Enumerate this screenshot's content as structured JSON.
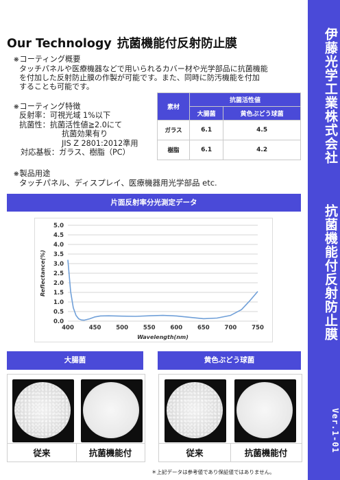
{
  "sidebar": {
    "company": "伊藤光学工業株式会社",
    "product": "抗菌機能付反射防止膜",
    "version": "Ver.1-01"
  },
  "header": {
    "title_en": "Our Technology",
    "title_jp": "抗菌機能付反射防止膜"
  },
  "overview": {
    "heading": "コーティング概要",
    "lines": [
      "タッチパネルや医療機器などで用いられるカバー材や光学部品に抗菌機能",
      "を付加した反射防止膜の作製が可能です。また、同時に防汚機能を付加",
      "することも可能です。"
    ]
  },
  "features": {
    "heading": "コーティング特徴",
    "lines": [
      "反射率：可視光域 1%以下",
      "抗菌性：抗菌活性値≧2.0にて",
      "抗菌効果有り",
      "JIS Z 2801:2012準用",
      "対応基板：ガラス、樹脂（PC）"
    ]
  },
  "applications": {
    "heading": "製品用途",
    "line": "タッチパネル、ディスプレイ、医療機器用光学部品 etc."
  },
  "activity_table": {
    "col_material": "素材",
    "col_group": "抗菌活性値",
    "col_ecoli": "大腸菌",
    "col_staph": "黄色ぶどう球菌",
    "rows": [
      {
        "material": "ガラス",
        "ecoli": "6.1",
        "staph": "4.5"
      },
      {
        "material": "樹脂",
        "ecoli": "6.1",
        "staph": "4.2"
      }
    ]
  },
  "spectrum_banner": "片面反射率分光測定データ",
  "chart_data": {
    "type": "line",
    "xlabel": "Wavelength(nm)",
    "ylabel": "Reflectance(%)",
    "xlim": [
      400,
      750
    ],
    "ylim": [
      0,
      5
    ],
    "x_ticks": [
      "400",
      "450",
      "500",
      "550",
      "600",
      "650",
      "700",
      "750"
    ],
    "y_ticks": [
      "0.0",
      "0.5",
      "1.0",
      "1.5",
      "2.0",
      "2.5",
      "3.0",
      "3.5",
      "4.0",
      "4.5",
      "5.0"
    ],
    "grid": "horizontal",
    "line_color": "#6f9fd8",
    "series": [
      {
        "x": [
          400,
          405,
          410,
          415,
          420,
          425,
          430,
          440,
          450,
          460,
          475,
          500,
          525,
          550,
          575,
          600,
          625,
          650,
          675,
          700,
          720,
          735,
          750
        ],
        "values": [
          3.2,
          1.55,
          0.7,
          0.3,
          0.12,
          0.06,
          0.05,
          0.12,
          0.22,
          0.27,
          0.28,
          0.26,
          0.25,
          0.28,
          0.3,
          0.27,
          0.2,
          0.13,
          0.16,
          0.3,
          0.6,
          1.05,
          1.55
        ]
      }
    ]
  },
  "ecoli_section": {
    "banner": "大腸菌",
    "conventional": "従来",
    "antibacterial": "抗菌機能付"
  },
  "staph_section": {
    "banner": "黄色ぶどう球菌",
    "conventional": "従来",
    "antibacterial": "抗菌機能付"
  },
  "footnote": "＊上記データは参考値であり保証値ではありません。",
  "colors": {
    "accent": "#4a4ad8"
  }
}
